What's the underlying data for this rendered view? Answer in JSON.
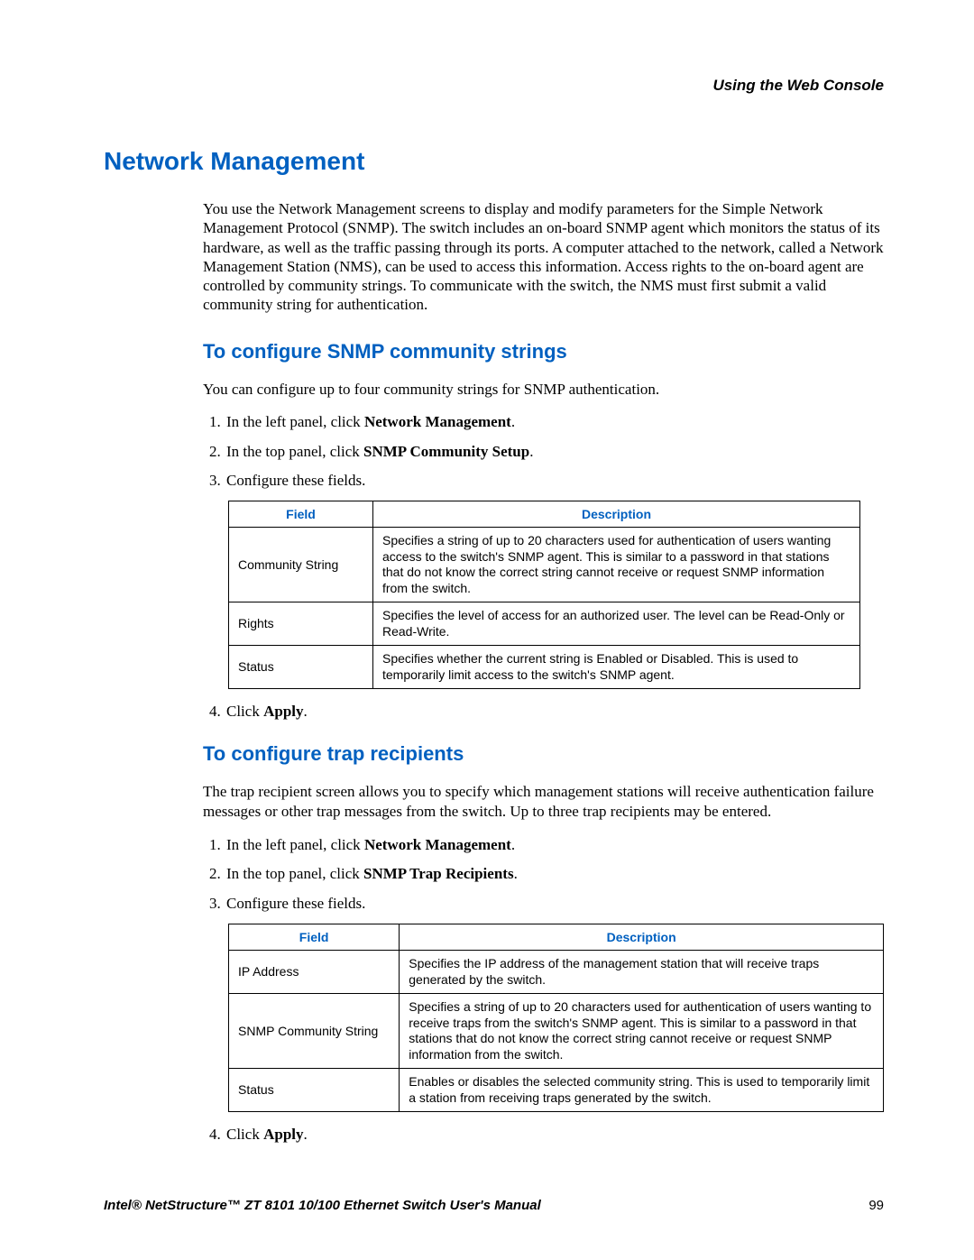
{
  "header": {
    "right": "Using the Web Console"
  },
  "headings": {
    "h1": "Network Management",
    "h2a": "To configure SNMP community strings",
    "h2b": "To configure trap recipients"
  },
  "intro": "You use the Network Management screens to display and modify parameters for the Simple Network Management Protocol (SNMP). The switch includes an on-board SNMP agent which monitors the status of its hardware, as well as the traffic passing through its ports. A computer attached to the network, called a Network Management Station (NMS), can be used to access this information. Access rights to the on-board agent are controlled by community strings. To communicate with the switch, the NMS must first submit a valid community string for authentication.",
  "snmp": {
    "para": "You can configure up to four community strings for SNMP authentication.",
    "step1_a": "In the left panel, click ",
    "step1_b": "Network Management",
    "step1_c": ".",
    "step2_a": "In the top panel, click ",
    "step2_b": "SNMP Community Setup",
    "step2_c": ".",
    "step3": "Configure these fields.",
    "step4_a": "Click ",
    "step4_b": "Apply",
    "step4_c": "."
  },
  "trap": {
    "para": "The trap recipient screen allows you to specify which management stations will receive authentication failure messages or other trap messages from the switch. Up to three trap recipients may be entered.",
    "step1_a": "In the left panel, click ",
    "step1_b": "Network Management",
    "step1_c": ".",
    "step2_a": "In the top panel, click ",
    "step2_b": "SNMP Trap Recipients",
    "step2_c": ".",
    "step3": "Configure these fields.",
    "step4_a": "Click ",
    "step4_b": "Apply",
    "step4_c": "."
  },
  "table_headers": {
    "field": "Field",
    "description": "Description"
  },
  "table1": {
    "rows": [
      {
        "field": "Community String",
        "desc": "Specifies a string of up to 20 characters used for authentication of users wanting access to the switch's SNMP agent. This is similar to a password in that stations that do not know the correct string cannot receive or request SNMP information from the switch."
      },
      {
        "field": "Rights",
        "desc": "Specifies the level of access for an authorized user. The level can be Read-Only or Read-Write."
      },
      {
        "field": "Status",
        "desc": "Specifies whether the current string is Enabled or Disabled. This is used to temporarily limit access to the switch's SNMP agent."
      }
    ]
  },
  "table2": {
    "rows": [
      {
        "field": "IP Address",
        "desc": "Specifies the IP address of the management station that will receive traps generated by the switch."
      },
      {
        "field": "SNMP Community String",
        "desc": "Specifies a string of up to 20 characters used for authentication of users wanting to receive traps from the switch's SNMP agent. This is similar to a password in that stations that do not know the correct string cannot receive or request SNMP information from the switch."
      },
      {
        "field": "Status",
        "desc": "Enables or disables the selected community string. This is used to temporarily limit a station from receiving traps generated by the switch."
      }
    ]
  },
  "footer": {
    "title": "Intel® NetStructure™  ZT 8101 10/100 Ethernet Switch User's Manual",
    "page": "99"
  },
  "colors": {
    "heading_blue": "#0060c0",
    "text": "#000000",
    "background": "#ffffff"
  }
}
